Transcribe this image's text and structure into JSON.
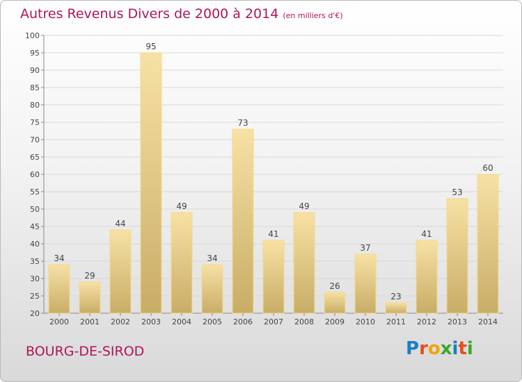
{
  "title": "Autres Revenus Divers de 2000 à 2014",
  "subtitle": "(en milliers d'€)",
  "place": "BOURG-DE-SIROD",
  "logo": {
    "text": "Proxiti",
    "colors": [
      "#1a7fc4",
      "#e84c1a",
      "#f0a500",
      "#3aa82c",
      "#1a7fc4",
      "#e84c1a",
      "#3aa82c"
    ]
  },
  "colors": {
    "title": "#b0155a",
    "bar_top": "#f7e1a4",
    "bar_bottom": "#c8ad67",
    "grid": "#d8d8d8"
  },
  "chart_data": {
    "type": "bar",
    "categories": [
      "2000",
      "2001",
      "2002",
      "2003",
      "2004",
      "2005",
      "2006",
      "2007",
      "2008",
      "2009",
      "2010",
      "2011",
      "2012",
      "2013",
      "2014"
    ],
    "values": [
      34,
      29,
      44,
      95,
      49,
      34,
      73,
      41,
      49,
      26,
      37,
      23,
      41,
      53,
      60
    ],
    "title": "Autres Revenus Divers de 2000 à 2014",
    "subtitle": "(en milliers d'€)",
    "xlabel": "",
    "ylabel": "",
    "ylim": [
      20,
      100
    ],
    "yticks": [
      20,
      25,
      30,
      35,
      40,
      45,
      50,
      55,
      60,
      65,
      70,
      75,
      80,
      85,
      90,
      95,
      100
    ],
    "grid": true,
    "data_labels": true
  }
}
